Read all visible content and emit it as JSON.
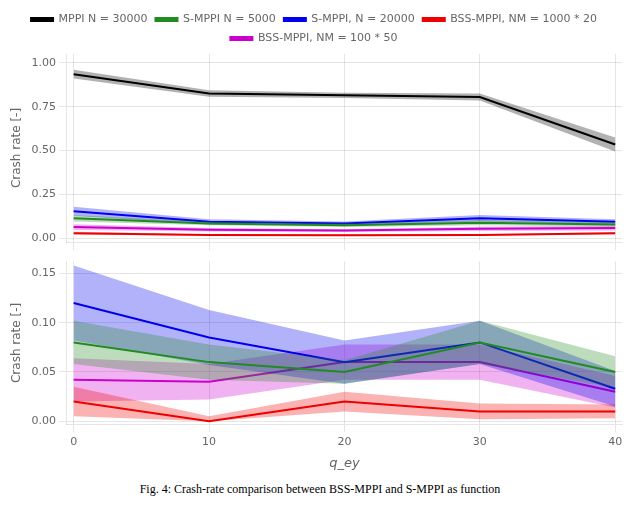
{
  "chart_data": [
    {
      "type": "line",
      "ylabel": "Crash rate [-]",
      "x": [
        0,
        10,
        20,
        30,
        40
      ],
      "series": [
        {
          "name": "MPPI N = 30000",
          "color": "#000000",
          "values": [
            0.935,
            0.825,
            0.815,
            0.805,
            0.535
          ],
          "band_low": [
            0.91,
            0.807,
            0.8,
            0.785,
            0.495
          ],
          "band_high": [
            0.96,
            0.843,
            0.83,
            0.825,
            0.575
          ]
        },
        {
          "name": "S-MPPI N = 5000",
          "color": "#228B22",
          "values": [
            0.115,
            0.085,
            0.075,
            0.09,
            0.08
          ],
          "band_low": [
            0.097,
            0.075,
            0.065,
            0.075,
            0.068
          ],
          "band_high": [
            0.133,
            0.095,
            0.085,
            0.105,
            0.092
          ]
        },
        {
          "name": "S-MPPI, N = 20000",
          "color": "#0000EE",
          "values": [
            0.155,
            0.095,
            0.085,
            0.115,
            0.095
          ],
          "band_low": [
            0.13,
            0.08,
            0.073,
            0.097,
            0.08
          ],
          "band_high": [
            0.18,
            0.11,
            0.097,
            0.133,
            0.11
          ]
        },
        {
          "name": "BSS-MPPI, NM = 1000 * 20",
          "color": "#EE0000",
          "values": [
            0.03,
            0.02,
            0.018,
            0.02,
            0.03
          ],
          "band_low": [
            0.022,
            0.016,
            0.014,
            0.016,
            0.024
          ],
          "band_high": [
            0.038,
            0.024,
            0.022,
            0.024,
            0.036
          ]
        },
        {
          "name": "BSS-MPPI, NM = 100 * 50",
          "color": "#CC00CC",
          "values": [
            0.065,
            0.05,
            0.045,
            0.055,
            0.06
          ],
          "band_low": [
            0.049,
            0.04,
            0.037,
            0.043,
            0.046
          ],
          "band_high": [
            0.081,
            0.06,
            0.053,
            0.067,
            0.074
          ]
        }
      ],
      "xlim": [
        -0.5,
        40.5
      ],
      "xticks": [
        0,
        10,
        20,
        30,
        40
      ],
      "ylim": [
        -0.02,
        1.05
      ],
      "yticks": [
        {
          "value": 0.0,
          "label": "0.00"
        },
        0.25,
        {
          "value": 0.5,
          "label": "0.50"
        },
        0.75,
        {
          "value": 1.0,
          "label": "1.00"
        }
      ],
      "grid": true,
      "legend": "top",
      "tick_labels": "y"
    },
    {
      "type": "line",
      "xlabel": "q_ey",
      "ylabel": "Crash rate [-]",
      "x": [
        0,
        10,
        20,
        30,
        40
      ],
      "series": [
        {
          "color": "#228B22",
          "values": [
            0.08,
            0.06,
            0.05,
            0.08,
            0.05
          ],
          "band_low": [
            0.058,
            0.042,
            0.038,
            0.058,
            0.034
          ],
          "band_high": [
            0.102,
            0.078,
            0.062,
            0.102,
            0.066
          ]
        },
        {
          "color": "#0000EE",
          "values": [
            0.12,
            0.085,
            0.06,
            0.08,
            0.033
          ],
          "band_low": [
            0.082,
            0.057,
            0.038,
            0.058,
            0.015
          ],
          "band_high": [
            0.158,
            0.113,
            0.082,
            0.102,
            0.051
          ]
        },
        {
          "color": "#EE0000",
          "values": [
            0.02,
            0.0,
            0.02,
            0.01,
            0.01
          ],
          "band_low": [
            0.005,
            0,
            0.01,
            0.002,
            0.003
          ],
          "band_high": [
            0.035,
            0.005,
            0.03,
            0.018,
            0.017
          ]
        },
        {
          "color": "#CC00CC",
          "values": [
            0.042,
            0.04,
            0.06,
            0.06,
            0.03
          ],
          "band_low": [
            0.02,
            0.022,
            0.042,
            0.042,
            0.014
          ],
          "band_high": [
            0.064,
            0.058,
            0.078,
            0.078,
            0.046
          ]
        }
      ],
      "xlim": [
        -0.5,
        40.5
      ],
      "xticks": [
        0,
        10,
        20,
        30,
        40
      ],
      "ylim": [
        -0.003,
        0.162
      ],
      "yticks": [
        {
          "value": 0.0,
          "label": "0.00"
        },
        0.05,
        {
          "value": 0.1,
          "label": "0.10"
        },
        0.15
      ],
      "grid": true,
      "annotations": [
        "Fig. 4: Crash-rate comparison between BSS-MPPI and S-MPPI as function"
      ]
    }
  ]
}
